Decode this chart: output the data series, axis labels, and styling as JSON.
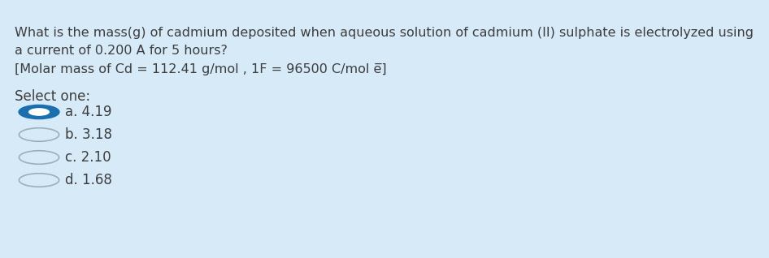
{
  "background_color": "#d6eaf8",
  "text_color": "#3d3d3d",
  "question_line1": "What is the mass(g) of cadmium deposited when aqueous solution of cadmium (II) sulphate is electrolyzed using",
  "question_line2": "a current of 0.200 A for 5 hours?",
  "given_line1": "[Molar mass of Cd = 112.41 g/mol , 1F = 96500 C/mol e",
  "given_line2": "⁾]",
  "select_label": "Select one:",
  "options": [
    {
      "label": "a. 4.19",
      "selected": true
    },
    {
      "label": "b. 3.18",
      "selected": false
    },
    {
      "label": "c. 2.10",
      "selected": false
    },
    {
      "label": "d. 1.68",
      "selected": false
    }
  ],
  "radio_color_selected_fill": "#1a6faf",
  "radio_color_selected_edge": "#1a6faf",
  "radio_color_unselected_fill": "#ccdce8",
  "radio_color_unselected_edge": "#9ab0bf",
  "font_size_question": 11.5,
  "font_size_options": 12.0,
  "font_size_select": 12.0,
  "figwidth": 9.46,
  "figheight": 3.18,
  "dpi": 100
}
